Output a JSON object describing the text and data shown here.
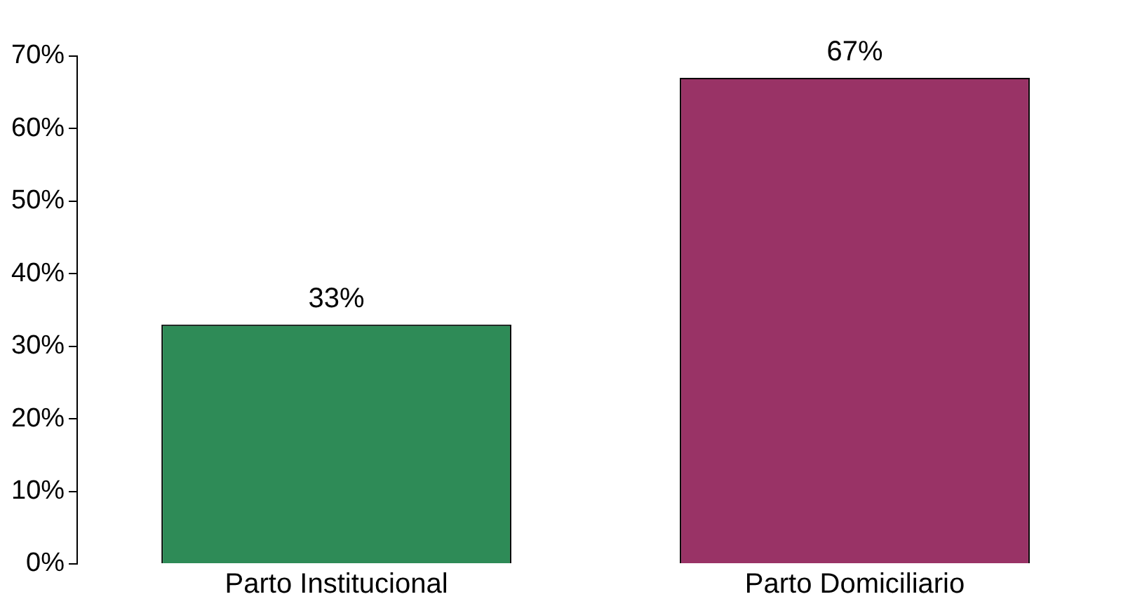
{
  "chart_data": {
    "type": "bar",
    "categories": [
      "Parto Institucional",
      "Parto Domiciliario"
    ],
    "values": [
      33,
      67
    ],
    "colors": [
      "#2e8b57",
      "#993366"
    ],
    "value_labels": [
      "33%",
      "67%"
    ],
    "ylim": [
      0,
      70
    ],
    "yticks": [
      {
        "value": 0,
        "label": "0%"
      },
      {
        "value": 10,
        "label": "10%"
      },
      {
        "value": 20,
        "label": "20%"
      },
      {
        "value": 30,
        "label": "30%"
      },
      {
        "value": 40,
        "label": "40%"
      },
      {
        "value": 50,
        "label": "50%"
      },
      {
        "value": 60,
        "label": "60%"
      },
      {
        "value": 70,
        "label": "70%"
      }
    ],
    "grid": false,
    "legend": false
  }
}
